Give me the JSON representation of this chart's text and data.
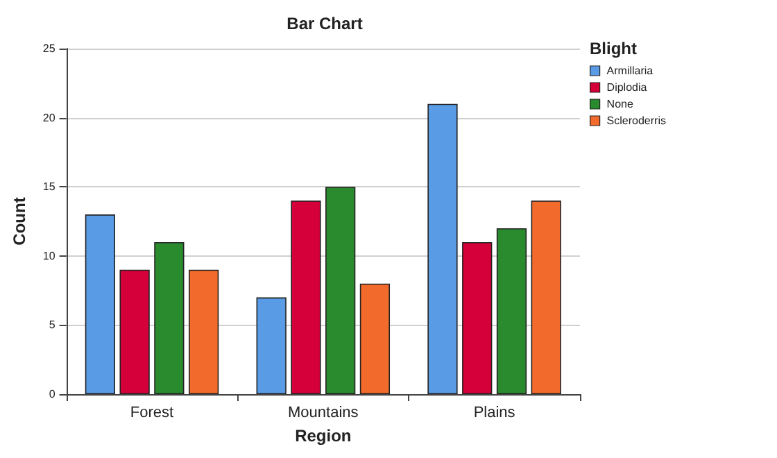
{
  "chart_data": {
    "type": "bar",
    "title": "Bar Chart",
    "xlabel": "Region",
    "ylabel": "Count",
    "legend_title": "Blight",
    "categories": [
      "Forest",
      "Mountains",
      "Plains"
    ],
    "series": [
      {
        "name": "Armillaria",
        "color": "#5a9be5",
        "values": [
          13,
          7,
          21
        ]
      },
      {
        "name": "Diplodia",
        "color": "#d5003a",
        "values": [
          9,
          14,
          11
        ]
      },
      {
        "name": "None",
        "color": "#2a8a2e",
        "values": [
          11,
          15,
          12
        ]
      },
      {
        "name": "Scleroderris",
        "color": "#f26b2c",
        "values": [
          9,
          8,
          14
        ]
      }
    ],
    "ylim": [
      0,
      25
    ],
    "yticks": [
      0,
      5,
      10,
      15,
      20,
      25
    ],
    "grid": "y",
    "legend": "top right"
  }
}
